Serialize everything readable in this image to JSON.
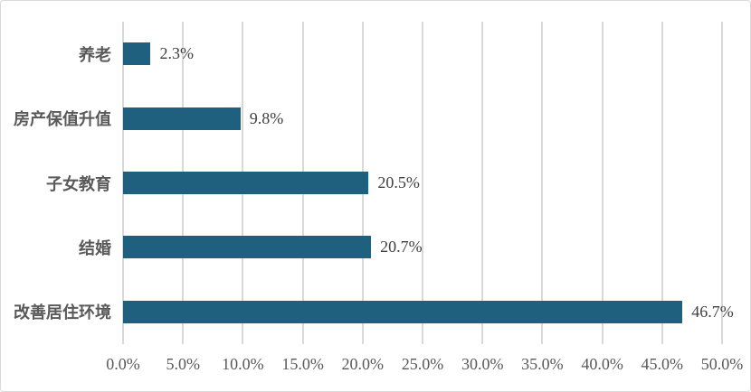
{
  "chart_data": {
    "type": "bar",
    "orientation": "horizontal",
    "title": "",
    "xlabel": "",
    "ylabel": "",
    "categories": [
      "养老",
      "房产保值升值",
      "子女教育",
      "结婚",
      "改善居住环境"
    ],
    "values": [
      2.3,
      9.8,
      20.5,
      20.7,
      46.7
    ],
    "value_labels": [
      "2.3%",
      "9.8%",
      "20.5%",
      "20.7%",
      "46.7%"
    ],
    "xlim": [
      0,
      50
    ],
    "x_ticks": [
      "0.0%",
      "5.0%",
      "10.0%",
      "15.0%",
      "20.0%",
      "25.0%",
      "30.0%",
      "35.0%",
      "40.0%",
      "45.0%",
      "50.0%"
    ],
    "grid": "vertical-only",
    "legend": "none",
    "colors": {
      "bar": "#1f607e",
      "gridline": "#d9d9d9",
      "frame_border": "#d9d9d9",
      "tick_text": "#595959",
      "category_text": "#595959",
      "value_text": "#404040",
      "background": "#ffffff"
    }
  }
}
